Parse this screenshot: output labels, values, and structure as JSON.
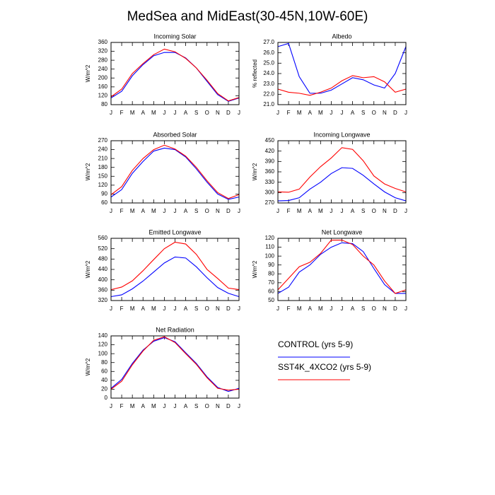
{
  "title": "MedSea and MidEast(30-45N,10W-60E)",
  "legend": [
    {
      "name": "CONTROL (yrs 5-9)",
      "color": "#0000ff"
    },
    {
      "name": "SST4K_4XCO2 (yrs 5-9)",
      "color": "#ff0000"
    }
  ],
  "chart_data": [
    {
      "type": "line",
      "title": "Incoming Solar",
      "y_label": "W/m^2",
      "categories": [
        "J",
        "F",
        "M",
        "A",
        "M",
        "J",
        "J",
        "A",
        "S",
        "O",
        "N",
        "D",
        "J"
      ],
      "series": [
        {
          "values": [
            110,
            140,
            210,
            260,
            300,
            315,
            315,
            290,
            245,
            185,
            125,
            95,
            110
          ]
        },
        {
          "values": [
            115,
            150,
            220,
            265,
            305,
            330,
            318,
            288,
            245,
            190,
            130,
            97,
            112
          ]
        }
      ],
      "ylim": [
        80,
        360
      ],
      "yticks": [
        80,
        120,
        160,
        200,
        240,
        280,
        320,
        360
      ]
    },
    {
      "type": "line",
      "title": "Albedo",
      "y_label": "% reflected",
      "categories": [
        "J",
        "F",
        "M",
        "A",
        "M",
        "J",
        "J",
        "A",
        "S",
        "O",
        "N",
        "D",
        "J"
      ],
      "series": [
        {
          "values": [
            26.6,
            26.9,
            23.7,
            22.1,
            22.1,
            22.4,
            23.0,
            23.6,
            23.4,
            22.9,
            22.6,
            24.0,
            26.6
          ]
        },
        {
          "values": [
            22.5,
            22.2,
            22.1,
            21.9,
            22.2,
            22.6,
            23.3,
            23.8,
            23.6,
            23.7,
            23.2,
            22.2,
            22.5
          ]
        }
      ],
      "ylim": [
        21,
        27
      ],
      "yticks": [
        {
          "value": 21,
          "label": "21.0"
        },
        {
          "value": 22,
          "label": "22.0"
        },
        {
          "value": 23,
          "label": "23.0"
        },
        {
          "value": 24,
          "label": "24.0"
        },
        {
          "value": 25,
          "label": "25.0"
        },
        {
          "value": 26,
          "label": "26.0"
        },
        {
          "value": 27,
          "label": "27.0"
        }
      ]
    },
    {
      "type": "line",
      "title": "Absorbed Solar",
      "y_label": "W/m^2",
      "categories": [
        "J",
        "F",
        "M",
        "A",
        "M",
        "J",
        "J",
        "A",
        "S",
        "O",
        "N",
        "D",
        "J"
      ],
      "series": [
        {
          "values": [
            80,
            105,
            160,
            200,
            235,
            245,
            240,
            215,
            175,
            130,
            90,
            72,
            80
          ]
        },
        {
          "values": [
            88,
            115,
            170,
            210,
            240,
            255,
            242,
            218,
            180,
            135,
            95,
            75,
            88
          ]
        }
      ],
      "ylim": [
        60,
        270
      ],
      "yticks": [
        60,
        90,
        120,
        150,
        180,
        210,
        240,
        270
      ]
    },
    {
      "type": "line",
      "title": "Incoming Longwave",
      "y_label": "W/m^2",
      "categories": [
        "J",
        "F",
        "M",
        "A",
        "M",
        "J",
        "J",
        "A",
        "S",
        "O",
        "N",
        "D",
        "J"
      ],
      "series": [
        {
          "values": [
            276,
            277,
            285,
            310,
            330,
            355,
            372,
            370,
            350,
            325,
            302,
            285,
            276
          ]
        },
        {
          "values": [
            302,
            301,
            310,
            345,
            375,
            400,
            430,
            425,
            392,
            348,
            325,
            312,
            302
          ]
        }
      ],
      "ylim": [
        270,
        450
      ],
      "yticks": [
        270,
        300,
        330,
        360,
        390,
        420,
        450
      ]
    },
    {
      "type": "line",
      "title": "Emitted Longwave",
      "y_label": "W/m^2",
      "categories": [
        "J",
        "F",
        "M",
        "A",
        "M",
        "J",
        "J",
        "A",
        "S",
        "O",
        "N",
        "D",
        "J"
      ],
      "series": [
        {
          "values": [
            335,
            342,
            365,
            395,
            430,
            465,
            488,
            484,
            450,
            408,
            370,
            348,
            335
          ]
        },
        {
          "values": [
            362,
            372,
            396,
            435,
            478,
            520,
            545,
            538,
            498,
            440,
            405,
            368,
            362
          ]
        }
      ],
      "ylim": [
        320,
        560
      ],
      "yticks": [
        320,
        360,
        400,
        440,
        480,
        520,
        560
      ]
    },
    {
      "type": "line",
      "title": "Net Longwave",
      "y_label": "W/m^2",
      "categories": [
        "J",
        "F",
        "M",
        "A",
        "M",
        "J",
        "J",
        "A",
        "S",
        "O",
        "N",
        "D",
        "J"
      ],
      "series": [
        {
          "values": [
            58,
            65,
            82,
            90,
            102,
            110,
            115,
            114,
            105,
            86,
            68,
            58,
            58
          ]
        },
        {
          "values": [
            62,
            75,
            88,
            93,
            103,
            118,
            118,
            113,
            100,
            90,
            72,
            58,
            62
          ]
        }
      ],
      "ylim": [
        50,
        120
      ],
      "yticks": [
        50,
        60,
        70,
        80,
        90,
        100,
        110,
        120
      ]
    },
    {
      "type": "line",
      "title": "Net Radiation",
      "y_label": "W/m^2",
      "categories": [
        "J",
        "F",
        "M",
        "A",
        "M",
        "J",
        "J",
        "A",
        "S",
        "O",
        "N",
        "D",
        "J"
      ],
      "series": [
        {
          "values": [
            22,
            42,
            78,
            108,
            128,
            136,
            127,
            102,
            78,
            48,
            24,
            15,
            22
          ]
        },
        {
          "values": [
            20,
            38,
            75,
            106,
            130,
            138,
            125,
            100,
            76,
            46,
            22,
            18,
            20
          ]
        }
      ],
      "ylim": [
        0,
        140
      ],
      "yticks": [
        0,
        20,
        40,
        60,
        80,
        100,
        120,
        140
      ]
    }
  ]
}
